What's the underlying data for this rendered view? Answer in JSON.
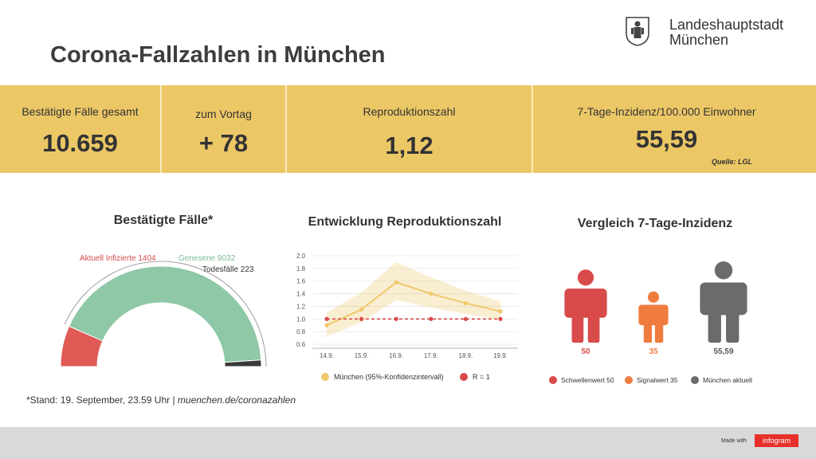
{
  "header": {
    "title": "Corona-Fallzahlen in München",
    "city_line1": "Landeshauptstadt",
    "city_line2": "München"
  },
  "kpis": [
    {
      "label": "Bestätigte Fälle gesamt",
      "value": "10.659"
    },
    {
      "label": "zum Vortag",
      "value": "+ 78"
    },
    {
      "label": "Reproduktionszahl",
      "value": "1,12"
    },
    {
      "label": "7-Tage-Inzidenz/100.000 Einwohner",
      "value": "55,59"
    }
  ],
  "kpi_source": "Quelle: LGL",
  "panels": {
    "cases_title": "Bestätigte Fälle*",
    "r_title": "Entwicklung Reproduktionszahl",
    "incidence_title": "Vergleich 7-Tage-Inzidenz"
  },
  "footnote": {
    "text": "*Stand: 19. September, 23.59 Uhr | ",
    "link": "muenchen.de/coronazahlen"
  },
  "footer": {
    "made_with": "Made with",
    "brand": "infogram"
  },
  "colors": {
    "kpi_band": "#ecc766",
    "infected": "#e05a56",
    "recovered": "#8ec8a6",
    "deaths": "#3a3a3a",
    "muenchen_line": "#f0c86a",
    "r_equals_one": "#d94a4a",
    "threshold": "#d94a4a",
    "signal": "#f07b3f",
    "muenchen_current": "#6b6b6b"
  },
  "chart_data": [
    {
      "type": "pie",
      "title": "Bestätigte Fälle*",
      "slices": [
        {
          "label": "Aktuell Infizierte",
          "value": 1404,
          "color": "#e05a56"
        },
        {
          "label": "Genesene",
          "value": 9032,
          "color": "#8ec8a6"
        },
        {
          "label": "Todesfälle",
          "value": 223,
          "color": "#3a3a3a"
        }
      ]
    },
    {
      "type": "line",
      "title": "Entwicklung Reproduktionszahl",
      "x": [
        "14.9.",
        "15.9.",
        "16.9.",
        "17.9.",
        "18.9.",
        "19.9."
      ],
      "y_ticks": [
        "2.0",
        "1.8",
        "1.6",
        "1.4",
        "1.2",
        "1.0",
        "0.8",
        "0.6"
      ],
      "ylim": [
        0.6,
        2.0
      ],
      "series": [
        {
          "name": "München (95%-Konfidenzintervall)",
          "values": [
            0.9,
            1.15,
            1.58,
            1.4,
            1.25,
            1.12
          ],
          "lower": [
            0.72,
            0.95,
            1.3,
            1.18,
            1.08,
            0.98
          ],
          "upper": [
            1.1,
            1.42,
            1.9,
            1.66,
            1.45,
            1.28
          ],
          "color": "#f0c86a"
        },
        {
          "name": "R = 1",
          "values": [
            1.0,
            1.0,
            1.0,
            1.0,
            1.0,
            1.0
          ],
          "color": "#d94a4a"
        }
      ]
    },
    {
      "type": "bar",
      "title": "Vergleich 7-Tage-Inzidenz",
      "categories": [
        "Schwellenwert 50",
        "Signalwert 35",
        "München aktuell"
      ],
      "values": [
        50,
        35,
        55.59
      ],
      "value_labels": [
        "50",
        "35",
        "55,59"
      ],
      "colors": [
        "#d94a4a",
        "#f07b3f",
        "#6b6b6b"
      ]
    }
  ]
}
